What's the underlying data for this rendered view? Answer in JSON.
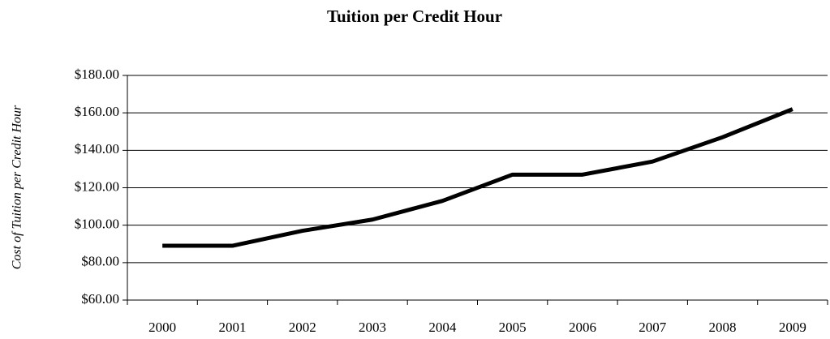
{
  "chart_data": {
    "type": "line",
    "title": "Tuition per Credit Hour",
    "y_label": "Cost of Tuition per Credit Hour",
    "categories": [
      "2000",
      "2001",
      "2002",
      "2003",
      "2004",
      "2005",
      "2006",
      "2007",
      "2008",
      "2009"
    ],
    "series": [
      {
        "name": "Tuition per Credit Hour",
        "color": "#000000",
        "values": [
          89,
          89,
          97,
          103,
          113,
          127,
          127,
          134,
          147,
          162
        ]
      }
    ],
    "ylim": [
      60,
      180
    ],
    "yticks": [
      {
        "value": 60,
        "label": "$60.00"
      },
      {
        "value": 80,
        "label": "$80.00"
      },
      {
        "value": 100,
        "label": "$100.00"
      },
      {
        "value": 120,
        "label": "$120.00"
      },
      {
        "value": 140,
        "label": "$140.00"
      },
      {
        "value": 160,
        "label": "$160.00"
      },
      {
        "value": 180,
        "label": "$180.00"
      }
    ],
    "grid": true
  }
}
